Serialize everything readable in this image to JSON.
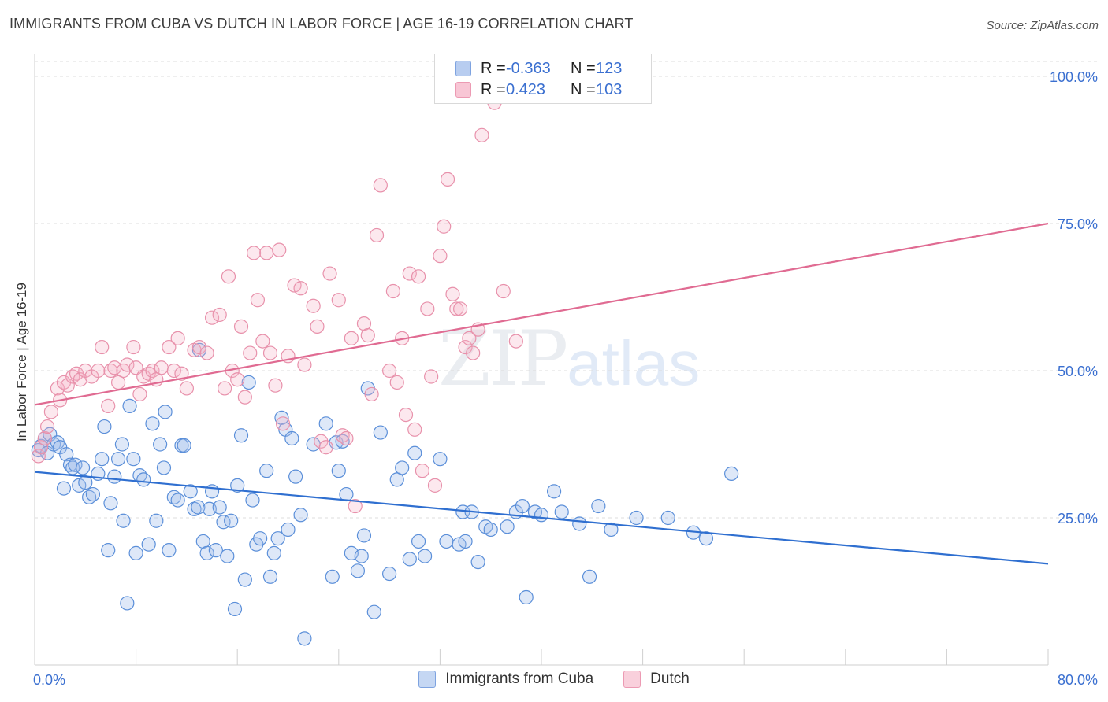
{
  "title": "IMMIGRANTS FROM CUBA VS DUTCH IN LABOR FORCE | AGE 16-19 CORRELATION CHART",
  "source": "Source: ZipAtlas.com",
  "watermark": {
    "part1": "ZIP",
    "part2": "atlas"
  },
  "legend": {
    "rows": [
      {
        "r_label": "R =",
        "r_value": "-0.363",
        "n_label": "N =",
        "n_value": "123",
        "fill": "#b8cdf0",
        "stroke": "#7ea3e0"
      },
      {
        "r_label": "R =",
        "r_value": "0.423",
        "n_label": "N =",
        "n_value": "103",
        "fill": "#f8c6d5",
        "stroke": "#ec9ab3"
      }
    ]
  },
  "bottom_legend": [
    {
      "label": "Immigrants from Cuba",
      "fill": "#c5d7f3",
      "stroke": "#7ea3e0"
    },
    {
      "label": "Dutch",
      "fill": "#f9d0dc",
      "stroke": "#ec9ab3"
    }
  ],
  "chart_data": {
    "type": "scatter",
    "title": "IMMIGRANTS FROM CUBA VS DUTCH IN LABOR FORCE | AGE 16-19 CORRELATION CHART",
    "xlabel": "",
    "ylabel": "In Labor Force | Age 16-19",
    "xlim": [
      0,
      80
    ],
    "ylim": [
      0,
      100
    ],
    "x_tick_labels": [
      {
        "value": 0,
        "label": "0.0%"
      },
      {
        "value": 80,
        "label": "80.0%"
      }
    ],
    "y_tick_labels": [
      {
        "value": 25,
        "label": "25.0%"
      },
      {
        "value": 50,
        "label": "50.0%"
      },
      {
        "value": 75,
        "label": "75.0%"
      },
      {
        "value": 100,
        "label": "100.0%"
      }
    ],
    "grid": true,
    "legend_position": "top-center",
    "series": [
      {
        "name": "Immigrants from Cuba",
        "color": "#5b8fd9",
        "fill": "rgba(160,190,235,0.35)",
        "trend": {
          "x": [
            0,
            80
          ],
          "y": [
            32.8,
            17.2
          ],
          "color": "#2f6fd0"
        },
        "points": [
          [
            0.3,
            36.5
          ],
          [
            0.5,
            37.2
          ],
          [
            0.8,
            38.5
          ],
          [
            1.0,
            36.0
          ],
          [
            1.2,
            39.2
          ],
          [
            1.5,
            37.5
          ],
          [
            1.8,
            37.8
          ],
          [
            2.0,
            37.0
          ],
          [
            2.3,
            30.0
          ],
          [
            2.5,
            35.8
          ],
          [
            2.8,
            34.0
          ],
          [
            3.0,
            33.5
          ],
          [
            3.2,
            34.0
          ],
          [
            3.5,
            30.5
          ],
          [
            3.8,
            33.5
          ],
          [
            4.0,
            31.0
          ],
          [
            4.3,
            28.5
          ],
          [
            4.6,
            29.0
          ],
          [
            5.0,
            32.5
          ],
          [
            5.3,
            35.0
          ],
          [
            5.5,
            40.5
          ],
          [
            5.8,
            19.5
          ],
          [
            6.0,
            27.5
          ],
          [
            6.3,
            32.0
          ],
          [
            6.6,
            35.0
          ],
          [
            6.9,
            37.5
          ],
          [
            7.0,
            24.5
          ],
          [
            7.3,
            10.5
          ],
          [
            7.5,
            44.0
          ],
          [
            7.8,
            35.0
          ],
          [
            8.0,
            19.0
          ],
          [
            8.3,
            32.2
          ],
          [
            8.6,
            31.5
          ],
          [
            9.0,
            20.5
          ],
          [
            9.3,
            41.0
          ],
          [
            9.6,
            24.5
          ],
          [
            9.9,
            37.5
          ],
          [
            10.2,
            33.5
          ],
          [
            10.3,
            43.0
          ],
          [
            10.6,
            19.5
          ],
          [
            11.0,
            28.5
          ],
          [
            11.3,
            28.0
          ],
          [
            11.6,
            37.3
          ],
          [
            11.8,
            37.3
          ],
          [
            12.3,
            29.5
          ],
          [
            12.6,
            26.5
          ],
          [
            12.9,
            26.8
          ],
          [
            13.0,
            53.5
          ],
          [
            13.3,
            21.0
          ],
          [
            13.6,
            19.0
          ],
          [
            13.8,
            26.5
          ],
          [
            14.0,
            29.5
          ],
          [
            14.3,
            19.5
          ],
          [
            14.6,
            26.8
          ],
          [
            14.9,
            24.3
          ],
          [
            15.2,
            18.5
          ],
          [
            15.5,
            24.5
          ],
          [
            15.8,
            9.5
          ],
          [
            16.0,
            30.5
          ],
          [
            16.3,
            39.0
          ],
          [
            16.6,
            14.5
          ],
          [
            16.9,
            48.0
          ],
          [
            17.2,
            28.0
          ],
          [
            17.5,
            20.5
          ],
          [
            17.8,
            21.5
          ],
          [
            18.3,
            33.0
          ],
          [
            18.6,
            15.0
          ],
          [
            18.9,
            19.0
          ],
          [
            19.2,
            21.5
          ],
          [
            19.5,
            42.0
          ],
          [
            19.8,
            40.0
          ],
          [
            20.0,
            23.0
          ],
          [
            20.3,
            38.5
          ],
          [
            20.6,
            32.0
          ],
          [
            21.0,
            25.5
          ],
          [
            21.3,
            4.5
          ],
          [
            22.0,
            37.5
          ],
          [
            23.0,
            41.0
          ],
          [
            23.5,
            15.0
          ],
          [
            23.8,
            37.8
          ],
          [
            24.0,
            33.0
          ],
          [
            24.3,
            38.0
          ],
          [
            24.6,
            29.0
          ],
          [
            25.0,
            19.0
          ],
          [
            25.5,
            16.0
          ],
          [
            25.8,
            18.5
          ],
          [
            26.0,
            22.0
          ],
          [
            26.3,
            47.0
          ],
          [
            26.8,
            9.0
          ],
          [
            27.3,
            39.5
          ],
          [
            28.0,
            15.5
          ],
          [
            28.6,
            31.5
          ],
          [
            29.0,
            33.5
          ],
          [
            29.6,
            18.0
          ],
          [
            30.0,
            36.0
          ],
          [
            30.3,
            21.0
          ],
          [
            30.8,
            18.5
          ],
          [
            32.0,
            35.0
          ],
          [
            32.5,
            21.0
          ],
          [
            33.5,
            20.5
          ],
          [
            33.8,
            26.0
          ],
          [
            34.0,
            21.0
          ],
          [
            34.5,
            26.0
          ],
          [
            35.0,
            17.5
          ],
          [
            35.6,
            23.5
          ],
          [
            36.0,
            23.0
          ],
          [
            37.3,
            23.5
          ],
          [
            38.0,
            26.0
          ],
          [
            38.5,
            27.0
          ],
          [
            38.8,
            11.5
          ],
          [
            39.5,
            26.0
          ],
          [
            40.0,
            25.5
          ],
          [
            41.0,
            29.5
          ],
          [
            41.6,
            26.0
          ],
          [
            43.0,
            24.0
          ],
          [
            43.8,
            15.0
          ],
          [
            44.5,
            27.0
          ],
          [
            45.5,
            23.0
          ],
          [
            47.5,
            25.0
          ],
          [
            50.0,
            25.0
          ],
          [
            52.0,
            22.5
          ],
          [
            53.0,
            21.5
          ],
          [
            55.0,
            32.5
          ]
        ]
      },
      {
        "name": "Dutch",
        "color": "#e891ab",
        "fill": "rgba(245,180,200,0.30)",
        "trend": {
          "x": [
            0,
            80
          ],
          "y": [
            44.2,
            75.0
          ],
          "color": "#e06b92"
        },
        "points": [
          [
            0.3,
            35.5
          ],
          [
            0.5,
            37.0
          ],
          [
            0.8,
            38.5
          ],
          [
            1.0,
            40.5
          ],
          [
            1.3,
            43.0
          ],
          [
            1.8,
            47.0
          ],
          [
            2.0,
            45.0
          ],
          [
            2.3,
            48.0
          ],
          [
            2.6,
            47.5
          ],
          [
            3.0,
            49.0
          ],
          [
            3.3,
            49.5
          ],
          [
            3.6,
            48.5
          ],
          [
            4.0,
            50.0
          ],
          [
            4.5,
            49.0
          ],
          [
            5.0,
            50.0
          ],
          [
            5.3,
            54.0
          ],
          [
            5.8,
            44.0
          ],
          [
            6.0,
            50.0
          ],
          [
            6.3,
            50.5
          ],
          [
            6.6,
            48.0
          ],
          [
            7.0,
            50.0
          ],
          [
            7.3,
            51.0
          ],
          [
            7.8,
            54.0
          ],
          [
            8.0,
            50.5
          ],
          [
            8.3,
            46.0
          ],
          [
            8.6,
            49.0
          ],
          [
            9.0,
            49.5
          ],
          [
            9.3,
            50.0
          ],
          [
            9.6,
            48.5
          ],
          [
            10.0,
            50.5
          ],
          [
            10.6,
            54.0
          ],
          [
            11.0,
            50.0
          ],
          [
            11.3,
            55.5
          ],
          [
            11.6,
            49.5
          ],
          [
            12.0,
            47.0
          ],
          [
            12.6,
            53.5
          ],
          [
            13.0,
            54.0
          ],
          [
            13.6,
            53.0
          ],
          [
            14.0,
            59.0
          ],
          [
            14.6,
            59.5
          ],
          [
            15.0,
            47.0
          ],
          [
            15.3,
            66.0
          ],
          [
            15.6,
            50.0
          ],
          [
            16.0,
            48.5
          ],
          [
            16.3,
            57.5
          ],
          [
            16.6,
            45.5
          ],
          [
            17.0,
            53.0
          ],
          [
            17.3,
            70.0
          ],
          [
            17.6,
            62.0
          ],
          [
            18.0,
            55.0
          ],
          [
            18.3,
            70.0
          ],
          [
            18.6,
            53.0
          ],
          [
            19.0,
            47.5
          ],
          [
            19.3,
            70.5
          ],
          [
            19.6,
            41.0
          ],
          [
            20.0,
            52.5
          ],
          [
            20.5,
            64.5
          ],
          [
            21.0,
            64.0
          ],
          [
            21.3,
            51.0
          ],
          [
            22.0,
            61.0
          ],
          [
            22.3,
            57.5
          ],
          [
            22.6,
            38.0
          ],
          [
            23.0,
            37.0
          ],
          [
            23.3,
            66.5
          ],
          [
            24.0,
            62.0
          ],
          [
            24.3,
            39.0
          ],
          [
            24.6,
            38.5
          ],
          [
            25.0,
            55.5
          ],
          [
            25.3,
            27.0
          ],
          [
            26.0,
            58.0
          ],
          [
            26.3,
            56.0
          ],
          [
            26.6,
            46.0
          ],
          [
            27.0,
            73.0
          ],
          [
            27.3,
            81.5
          ],
          [
            28.0,
            50.0
          ],
          [
            28.3,
            63.5
          ],
          [
            28.6,
            48.0
          ],
          [
            29.0,
            55.5
          ],
          [
            29.3,
            42.5
          ],
          [
            29.6,
            66.5
          ],
          [
            30.0,
            40.0
          ],
          [
            30.3,
            66.0
          ],
          [
            30.6,
            33.0
          ],
          [
            31.0,
            60.5
          ],
          [
            31.3,
            49.0
          ],
          [
            31.6,
            30.5
          ],
          [
            32.0,
            69.5
          ],
          [
            32.3,
            74.5
          ],
          [
            32.6,
            82.5
          ],
          [
            33.0,
            63.0
          ],
          [
            33.3,
            60.5
          ],
          [
            33.6,
            60.5
          ],
          [
            34.0,
            54.0
          ],
          [
            34.3,
            55.5
          ],
          [
            34.6,
            53.0
          ],
          [
            35.0,
            57.0
          ],
          [
            35.3,
            90.0
          ],
          [
            36.0,
            100.0
          ],
          [
            36.3,
            95.5
          ],
          [
            37.0,
            63.5
          ],
          [
            38.0,
            55.0
          ],
          [
            32.5,
            100.0
          ],
          [
            33.0,
            100.0
          ]
        ]
      }
    ]
  }
}
